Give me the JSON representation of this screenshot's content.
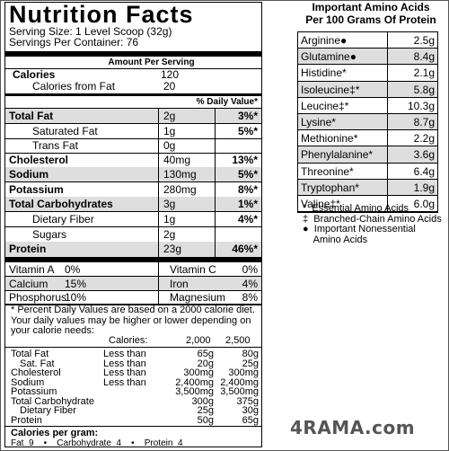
{
  "label": {
    "title": "Nutrition Facts",
    "serving_size": "Serving Size:  1 Level Scoop (32g)",
    "servings_per_container": "Servings Per Container:  76",
    "amount_per_serving": "Amount Per Serving",
    "calories_label": "Calories",
    "calories_value": "120",
    "calories_fat_label": "Calories from Fat",
    "calories_fat_value": "20",
    "dv_header": "% Daily Value*",
    "nutrients": [
      {
        "name": "Total Fat",
        "amount": "2g",
        "dv": "3%*"
      },
      {
        "name": "Saturated Fat",
        "amount": "1g",
        "dv": "5%*"
      },
      {
        "name": "Trans Fat",
        "amount": "0g",
        "dv": ""
      },
      {
        "name": "Cholesterol",
        "amount": "40mg",
        "dv": "13%*"
      },
      {
        "name": "Sodium",
        "amount": "130mg",
        "dv": "5%*"
      },
      {
        "name": "Potassium",
        "amount": "280mg",
        "dv": "8%*"
      },
      {
        "name": "Total Carbohydrates",
        "amount": "3g",
        "dv": "1%*"
      },
      {
        "name": "Dietary Fiber",
        "amount": "1g",
        "dv": "4%*"
      },
      {
        "name": "Sugars",
        "amount": "2g",
        "dv": ""
      },
      {
        "name": "Protein",
        "amount": "23g",
        "dv": "46%*"
      }
    ],
    "vitamins": [
      [
        "Vitamin A",
        "0%",
        "Vitamin C",
        "0%"
      ],
      [
        "Calcium",
        "15%",
        "Iron",
        "4%"
      ],
      [
        "Phosphorus",
        "10%",
        "Magnesium",
        "8%"
      ]
    ],
    "footnote": "* Percent Daily Values are based on a 2000 calorie diet. Your daily values may be higher or lower depending on your calorie needs:",
    "ref_header": [
      "Calories:",
      "2,000",
      "2,500"
    ],
    "ref_rows": [
      [
        "Total Fat",
        "Less than",
        "65g",
        "80g"
      ],
      [
        "Sat. Fat",
        "Less than",
        "20g",
        "25g"
      ],
      [
        "Cholesterol",
        "Less than",
        "300mg",
        "300mg"
      ],
      [
        "Sodium",
        "Less than",
        "2,400mg",
        "2,400mg"
      ],
      [
        "Potassium",
        "",
        "3,500mg",
        "3,500mg"
      ],
      [
        "Total Carbohydrate",
        "",
        "300g",
        "375g"
      ],
      [
        "Dietary Fiber",
        "",
        "25g",
        "30g"
      ],
      [
        "Protein",
        "",
        "50g",
        "65g"
      ]
    ],
    "cal_per_gram_label": "Calories per gram:",
    "cal_per_gram": "Fat  9    •    Carbohydrate  4    •    Protein  4"
  },
  "amino": {
    "title_line1": "Important Amino Acids",
    "title_line2": "Per 100 Grams Of Protein",
    "rows": [
      {
        "name": "Arginine●",
        "value": "2.5g"
      },
      {
        "name": "Glutamine●",
        "value": "8.4g"
      },
      {
        "name": "Histidine*",
        "value": "2.1g"
      },
      {
        "name": "Isoleucine‡*",
        "value": "5.8g"
      },
      {
        "name": "Leucine‡*",
        "value": "10.3g"
      },
      {
        "name": "Lysine*",
        "value": "8.7g"
      },
      {
        "name": "Methionine*",
        "value": "2.2g"
      },
      {
        "name": "Phenylalanine*",
        "value": "3.6g"
      },
      {
        "name": "Threonine*",
        "value": "6.4g"
      },
      {
        "name": "Tryptophan*",
        "value": "1.9g"
      },
      {
        "name": "Valine‡*",
        "value": "6.0g"
      }
    ],
    "legend": [
      "*  Essential Amino Acids",
      "‡  Branched-Chain Amino Acids",
      "●  Important Nonessential",
      "    Amino Acids"
    ]
  },
  "watermark": "4RAMA.com"
}
